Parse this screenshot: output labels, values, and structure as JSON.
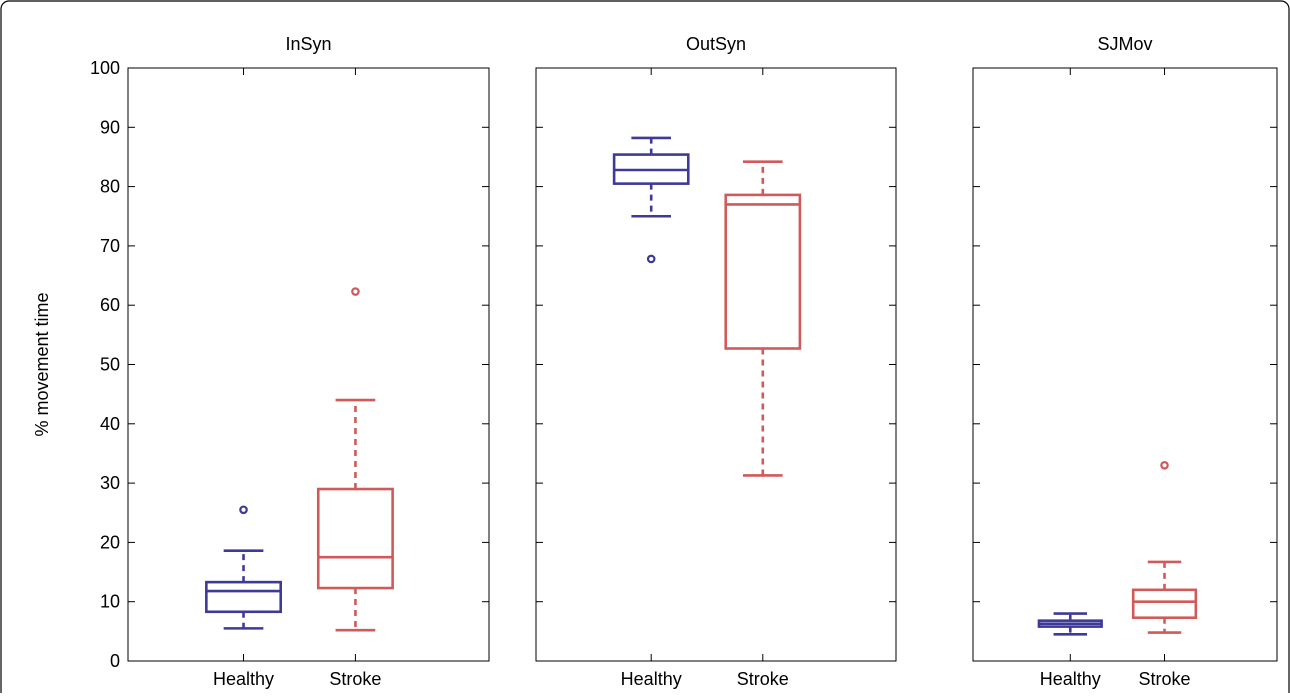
{
  "colors": {
    "healthy": "#3f3a97",
    "stroke": "#d05a5a"
  },
  "chart_data": {
    "type": "box",
    "ylabel": "% movement time",
    "ylim": [
      0,
      100
    ],
    "yticks": [
      0,
      10,
      20,
      30,
      40,
      50,
      60,
      70,
      80,
      90,
      100
    ],
    "categories": [
      "Healthy",
      "Stroke"
    ],
    "panels": [
      {
        "title": "InSyn",
        "boxes": [
          {
            "group": "Healthy",
            "whisker_low": 5.5,
            "q1": 8.3,
            "median": 11.8,
            "q3": 13.3,
            "whisker_high": 18.6,
            "outliers": [
              25.5
            ]
          },
          {
            "group": "Stroke",
            "whisker_low": 5.2,
            "q1": 12.3,
            "median": 17.5,
            "q3": 29.0,
            "whisker_high": 44.0,
            "outliers": [
              62.3
            ]
          }
        ]
      },
      {
        "title": "OutSyn",
        "boxes": [
          {
            "group": "Healthy",
            "whisker_low": 75.0,
            "q1": 80.5,
            "median": 82.8,
            "q3": 85.4,
            "whisker_high": 88.2,
            "outliers": [
              67.8
            ]
          },
          {
            "group": "Stroke",
            "whisker_low": 31.3,
            "q1": 52.7,
            "median": 77.0,
            "q3": 78.6,
            "whisker_high": 84.2,
            "outliers": []
          }
        ]
      },
      {
        "title": "SJMov",
        "boxes": [
          {
            "group": "Healthy",
            "whisker_low": 4.5,
            "q1": 5.8,
            "median": 6.3,
            "q3": 6.8,
            "whisker_high": 8.0,
            "outliers": []
          },
          {
            "group": "Stroke",
            "whisker_low": 4.8,
            "q1": 7.3,
            "median": 10.0,
            "q3": 12.0,
            "whisker_high": 16.7,
            "outliers": [
              33.0
            ]
          }
        ]
      }
    ]
  }
}
